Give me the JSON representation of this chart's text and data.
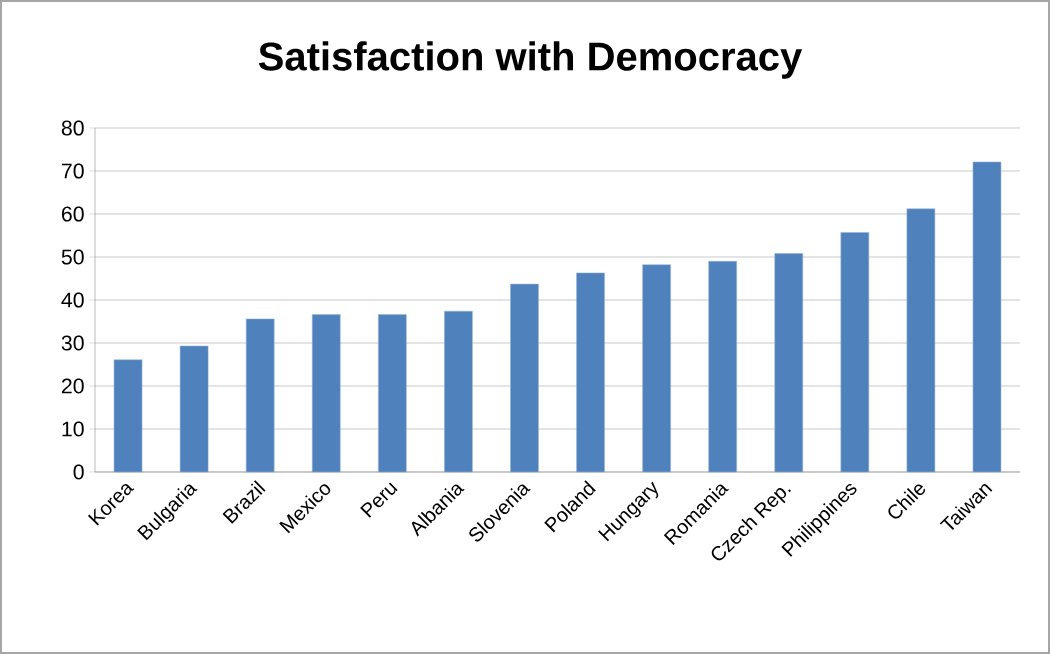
{
  "chart_data": {
    "type": "bar",
    "title": "Satisfaction with Democracy",
    "categories": [
      "Korea",
      "Bulgaria",
      "Brazil",
      "Mexico",
      "Peru",
      "Albania",
      "Slovenia",
      "Poland",
      "Hungary",
      "Romania",
      "Czech Rep.",
      "Philippines",
      "Chile",
      "Taiwan"
    ],
    "values": [
      26.1,
      29.3,
      35.6,
      36.6,
      36.6,
      37.4,
      43.7,
      46.3,
      48.2,
      49.0,
      50.8,
      55.7,
      61.2,
      72.1
    ],
    "color": "#4f81bd",
    "ylim": [
      0,
      80
    ],
    "yticks": [
      0,
      10,
      20,
      30,
      40,
      50,
      60,
      70,
      80
    ],
    "grid": "y"
  }
}
